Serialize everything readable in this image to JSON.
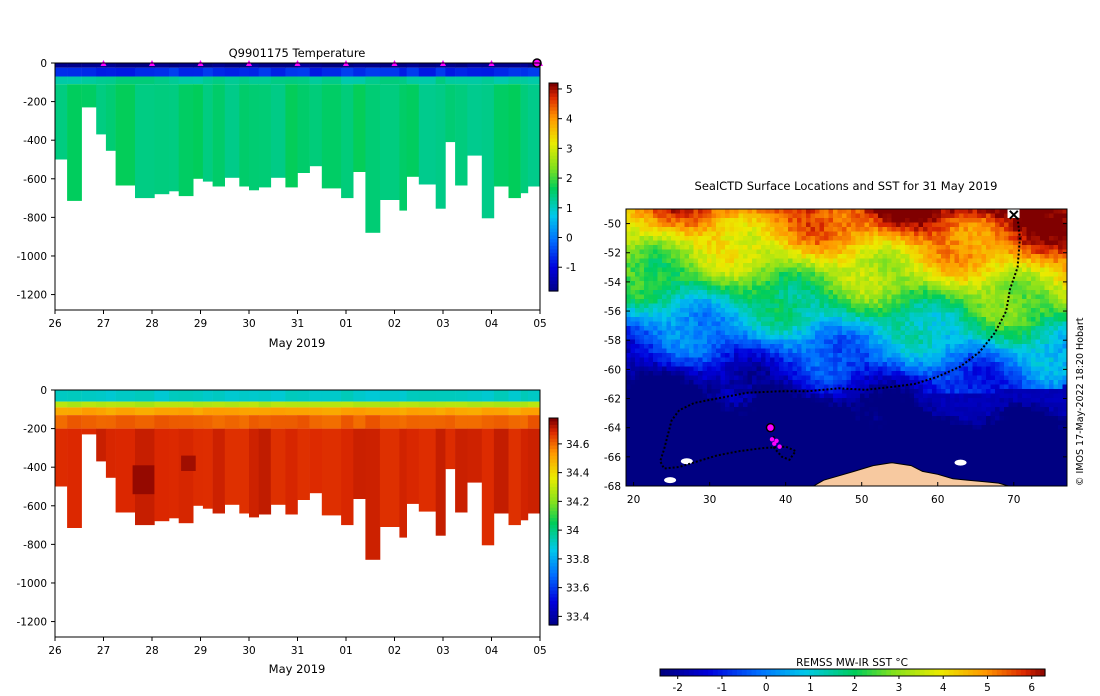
{
  "chart_data": [
    {
      "id": "temperature",
      "type": "heatmap",
      "title": "Q9901175  Temperature",
      "xlabel": "May 2019",
      "ylabel": "",
      "x_ticks": [
        "26",
        "27",
        "28",
        "29",
        "30",
        "31",
        "01",
        "02",
        "03",
        "04",
        "05"
      ],
      "y_ticks": [
        0,
        -200,
        -400,
        -600,
        -800,
        -1000,
        -1200
      ],
      "ylim": [
        -1280,
        0
      ],
      "colorbar": {
        "ticks": [
          5,
          4,
          3,
          2,
          1,
          0,
          -1
        ],
        "min": -1.8,
        "max": 5.2
      },
      "surface_marker_days": [
        1,
        2,
        3,
        4,
        5,
        6,
        7,
        8,
        9,
        10
      ],
      "current_position_day": 10,
      "layers": [
        {
          "from_depth": 0,
          "to_depth": -25,
          "value": -1.7
        },
        {
          "from_depth": -25,
          "to_depth": -70,
          "value": -0.6
        },
        {
          "from_depth": -70,
          "to_depth": -110,
          "value": 1.35
        },
        {
          "from_depth": -110,
          "to_depth": -9999,
          "value": 1.55
        }
      ],
      "profiles": [
        {
          "day": 0.0,
          "end": 0.25,
          "max_depth": -500
        },
        {
          "day": 0.25,
          "end": 0.55,
          "max_depth": -715
        },
        {
          "day": 0.55,
          "end": 0.85,
          "max_depth": -230
        },
        {
          "day": 0.85,
          "end": 1.05,
          "max_depth": -370
        },
        {
          "day": 1.05,
          "end": 1.25,
          "max_depth": -455
        },
        {
          "day": 1.25,
          "end": 1.65,
          "max_depth": -635
        },
        {
          "day": 1.65,
          "end": 2.05,
          "max_depth": -700
        },
        {
          "day": 2.05,
          "end": 2.35,
          "max_depth": -680
        },
        {
          "day": 2.35,
          "end": 2.55,
          "max_depth": -665
        },
        {
          "day": 2.55,
          "end": 2.85,
          "max_depth": -690
        },
        {
          "day": 2.85,
          "end": 3.05,
          "max_depth": -600
        },
        {
          "day": 3.05,
          "end": 3.25,
          "max_depth": -615
        },
        {
          "day": 3.25,
          "end": 3.5,
          "max_depth": -640
        },
        {
          "day": 3.5,
          "end": 3.8,
          "max_depth": -595
        },
        {
          "day": 3.8,
          "end": 4.0,
          "max_depth": -640
        },
        {
          "day": 4.0,
          "end": 4.2,
          "max_depth": -660
        },
        {
          "day": 4.2,
          "end": 4.45,
          "max_depth": -645
        },
        {
          "day": 4.45,
          "end": 4.75,
          "max_depth": -595
        },
        {
          "day": 4.75,
          "end": 5.0,
          "max_depth": -645
        },
        {
          "day": 5.0,
          "end": 5.25,
          "max_depth": -570
        },
        {
          "day": 5.25,
          "end": 5.5,
          "max_depth": -535
        },
        {
          "day": 5.5,
          "end": 5.9,
          "max_depth": -650
        },
        {
          "day": 5.9,
          "end": 6.15,
          "max_depth": -700
        },
        {
          "day": 6.15,
          "end": 6.4,
          "max_depth": -565
        },
        {
          "day": 6.4,
          "end": 6.7,
          "max_depth": -880
        },
        {
          "day": 6.7,
          "end": 7.1,
          "max_depth": -710
        },
        {
          "day": 7.1,
          "end": 7.25,
          "max_depth": -765
        },
        {
          "day": 7.25,
          "end": 7.5,
          "max_depth": -590
        },
        {
          "day": 7.5,
          "end": 7.85,
          "max_depth": -630
        },
        {
          "day": 7.85,
          "end": 8.05,
          "max_depth": -755
        },
        {
          "day": 8.05,
          "end": 8.25,
          "max_depth": -410
        },
        {
          "day": 8.25,
          "end": 8.5,
          "max_depth": -635
        },
        {
          "day": 8.5,
          "end": 8.8,
          "max_depth": -480
        },
        {
          "day": 8.8,
          "end": 9.05,
          "max_depth": -805
        },
        {
          "day": 9.05,
          "end": 9.35,
          "max_depth": -640
        },
        {
          "day": 9.35,
          "end": 9.6,
          "max_depth": -700
        },
        {
          "day": 9.6,
          "end": 9.75,
          "max_depth": -675
        },
        {
          "day": 9.75,
          "end": 10.0,
          "max_depth": -640
        }
      ]
    },
    {
      "id": "salinity",
      "type": "heatmap",
      "title": "",
      "xlabel": "May 2019",
      "ylabel": "",
      "x_ticks": [
        "26",
        "27",
        "28",
        "29",
        "30",
        "31",
        "01",
        "02",
        "03",
        "04",
        "05"
      ],
      "y_ticks": [
        0,
        -200,
        -400,
        -600,
        -800,
        -1000,
        -1200
      ],
      "ylim": [
        -1280,
        0
      ],
      "colorbar": {
        "ticks": [
          34.6,
          34.4,
          34.2,
          34,
          33.8,
          33.6,
          33.4
        ],
        "min": 33.34,
        "max": 34.78
      },
      "layers": [
        {
          "from_depth": 0,
          "to_depth": -60,
          "value": 33.92
        },
        {
          "from_depth": -60,
          "to_depth": -90,
          "value": 34.28
        },
        {
          "from_depth": -90,
          "to_depth": -130,
          "value": 34.52
        },
        {
          "from_depth": -130,
          "to_depth": -200,
          "value": 34.62
        },
        {
          "from_depth": -200,
          "to_depth": -9999,
          "value": 34.7
        }
      ],
      "anomalies": [
        {
          "day": 1.6,
          "end": 2.05,
          "top": -390,
          "bottom": -540,
          "value": 34.76
        },
        {
          "day": 2.6,
          "end": 2.9,
          "top": -340,
          "bottom": -420,
          "value": 34.75
        }
      ]
    },
    {
      "id": "sst-map",
      "type": "heatmap",
      "title": "SealCTD Surface Locations and SST for 31 May 2019",
      "xlabel": "",
      "ylabel": "",
      "x_ticks": [
        20,
        30,
        40,
        50,
        60,
        70
      ],
      "y_ticks": [
        -50,
        -52,
        -54,
        -56,
        -58,
        -60,
        -62,
        -64,
        -66,
        -68
      ],
      "xlim": [
        19,
        77
      ],
      "ylim": [
        -68,
        -49
      ],
      "side_credit": "© IMOS 17-May-2022 18:20 Hobart",
      "colorbar": {
        "label": "REMSS MW-IR SST °C",
        "ticks": [
          -2,
          -1,
          0,
          1,
          2,
          3,
          4,
          5,
          6
        ],
        "min": -2.4,
        "max": 6.3
      },
      "track": [
        [
          70.5,
          -49.6
        ],
        [
          70.8,
          -51
        ],
        [
          70.5,
          -53
        ],
        [
          69.5,
          -54.5
        ],
        [
          69,
          -56
        ],
        [
          67.5,
          -57.5
        ],
        [
          65.5,
          -58.8
        ],
        [
          63,
          -59.8
        ],
        [
          60,
          -60.5
        ],
        [
          57,
          -61
        ],
        [
          54,
          -61.2
        ],
        [
          50.5,
          -61.4
        ],
        [
          47,
          -61.3
        ],
        [
          43,
          -61.5
        ],
        [
          39.5,
          -61.5
        ],
        [
          35,
          -61.6
        ],
        [
          31,
          -62
        ],
        [
          28,
          -62.3
        ],
        [
          26,
          -62.8
        ],
        [
          25,
          -63.5
        ],
        [
          24.5,
          -64.5
        ],
        [
          24,
          -65.5
        ],
        [
          23.5,
          -66.3
        ],
        [
          24,
          -66.8
        ],
        [
          26,
          -66.7
        ],
        [
          28.5,
          -66.3
        ],
        [
          31,
          -65.9
        ],
        [
          34,
          -65.6
        ],
        [
          37,
          -65.4
        ],
        [
          40,
          -65.3
        ],
        [
          41.3,
          -65.6
        ],
        [
          40.5,
          -66.2
        ],
        [
          39.5,
          -66
        ],
        [
          38.5,
          -65.4
        ],
        [
          38.2,
          -64.8
        ],
        [
          38.5,
          -64.6
        ]
      ],
      "recent_positions": [
        [
          38.2,
          -64.8
        ],
        [
          38.5,
          -65.1
        ],
        [
          39.2,
          -65.3
        ],
        [
          38.8,
          -64.9
        ]
      ],
      "current_position": [
        38,
        -64
      ],
      "start_position": [
        70,
        -49.4
      ]
    }
  ]
}
